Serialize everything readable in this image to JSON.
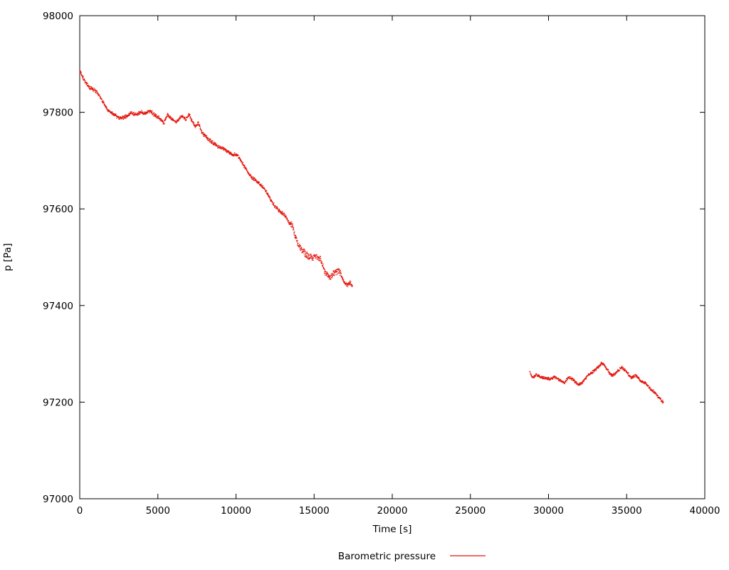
{
  "chart_data": {
    "type": "scatter",
    "title": "",
    "xlabel": "Time [s]",
    "ylabel": "p [Pa]",
    "legend": "Barometric pressure",
    "xlim": [
      0,
      40000
    ],
    "ylim": [
      97000,
      98000
    ],
    "xticks": [
      0,
      5000,
      10000,
      15000,
      20000,
      25000,
      30000,
      35000,
      40000
    ],
    "yticks": [
      97000,
      97200,
      97400,
      97600,
      97800,
      98000
    ],
    "grid": false,
    "legend_position": "bottom-center",
    "color": "#e3150b",
    "series": [
      {
        "name": "Barometric pressure",
        "segments": [
          {
            "noise": 4.5,
            "noise_zones": [
              {
                "from": 13500,
                "to": 16800,
                "amp": 8
              }
            ],
            "points": [
              [
                0,
                97885
              ],
              [
                200,
                97872
              ],
              [
                400,
                97862
              ],
              [
                600,
                97852
              ],
              [
                800,
                97848
              ],
              [
                1000,
                97845
              ],
              [
                1200,
                97838
              ],
              [
                1500,
                97820
              ],
              [
                1800,
                97805
              ],
              [
                2100,
                97798
              ],
              [
                2400,
                97790
              ],
              [
                2700,
                97788
              ],
              [
                3000,
                97792
              ],
              [
                3300,
                97798
              ],
              [
                3600,
                97795
              ],
              [
                3900,
                97800
              ],
              [
                4200,
                97798
              ],
              [
                4500,
                97802
              ],
              [
                4800,
                97795
              ],
              [
                5100,
                97788
              ],
              [
                5400,
                97778
              ],
              [
                5600,
                97795
              ],
              [
                5900,
                97785
              ],
              [
                6200,
                97780
              ],
              [
                6500,
                97792
              ],
              [
                6800,
                97786
              ],
              [
                7000,
                97796
              ],
              [
                7200,
                97782
              ],
              [
                7400,
                97770
              ],
              [
                7600,
                97778
              ],
              [
                7800,
                97760
              ],
              [
                8000,
                97752
              ],
              [
                8300,
                97742
              ],
              [
                8600,
                97735
              ],
              [
                8900,
                97728
              ],
              [
                9200,
                97725
              ],
              [
                9500,
                97718
              ],
              [
                9800,
                97712
              ],
              [
                10100,
                97712
              ],
              [
                10400,
                97695
              ],
              [
                10700,
                97680
              ],
              [
                11000,
                97665
              ],
              [
                11300,
                97658
              ],
              [
                11600,
                97650
              ],
              [
                11900,
                97638
              ],
              [
                12200,
                97620
              ],
              [
                12500,
                97605
              ],
              [
                12800,
                97595
              ],
              [
                13100,
                97588
              ],
              [
                13400,
                97572
              ],
              [
                13600,
                97566
              ],
              [
                13800,
                97542
              ],
              [
                14000,
                97525
              ],
              [
                14300,
                97512
              ],
              [
                14600,
                97502
              ],
              [
                14900,
                97497
              ],
              [
                15100,
                97503
              ],
              [
                15400,
                97495
              ],
              [
                15700,
                97470
              ],
              [
                16000,
                97458
              ],
              [
                16300,
                97468
              ],
              [
                16600,
                97472
              ],
              [
                16900,
                97450
              ],
              [
                17100,
                97442
              ],
              [
                17300,
                97447
              ],
              [
                17450,
                97440
              ]
            ]
          },
          {
            "noise": 3.5,
            "noise_zones": [],
            "points": [
              [
                28800,
                97262
              ],
              [
                29000,
                97250
              ],
              [
                29200,
                97257
              ],
              [
                29500,
                97252
              ],
              [
                29800,
                97250
              ],
              [
                30100,
                97248
              ],
              [
                30400,
                97252
              ],
              [
                30700,
                97246
              ],
              [
                31000,
                97240
              ],
              [
                31300,
                97252
              ],
              [
                31600,
                97246
              ],
              [
                31900,
                97236
              ],
              [
                32200,
                97242
              ],
              [
                32500,
                97255
              ],
              [
                32800,
                97262
              ],
              [
                33100,
                97270
              ],
              [
                33400,
                97280
              ],
              [
                33600,
                97276
              ],
              [
                33900,
                97260
              ],
              [
                34100,
                97254
              ],
              [
                34400,
                97264
              ],
              [
                34700,
                97272
              ],
              [
                35000,
                97262
              ],
              [
                35300,
                97250
              ],
              [
                35600,
                97256
              ],
              [
                35900,
                97244
              ],
              [
                36200,
                97240
              ],
              [
                36500,
                97228
              ],
              [
                36800,
                97220
              ],
              [
                37000,
                97212
              ],
              [
                37200,
                97204
              ],
              [
                37350,
                97200
              ]
            ]
          }
        ]
      }
    ]
  }
}
